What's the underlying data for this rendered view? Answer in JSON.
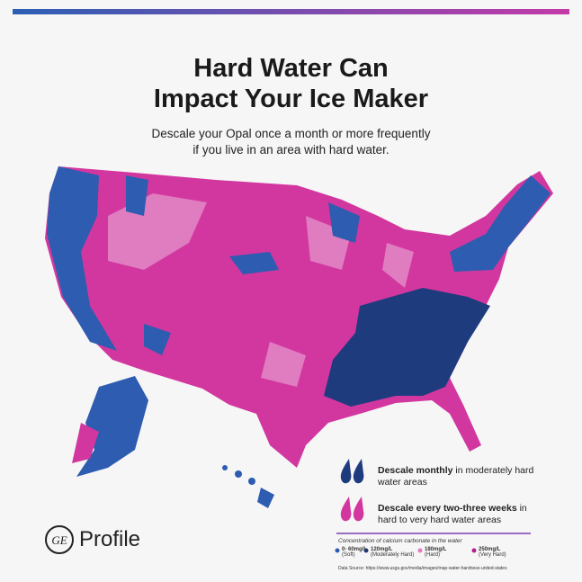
{
  "header": {
    "title_lines": [
      "Hard Water Can",
      "Impact Your Ice Maker"
    ],
    "subtitle_lines": [
      "Descale your Opal once a month or more frequently",
      "if you live in an area with hard water."
    ]
  },
  "legend": {
    "items": [
      {
        "bold": "Descale monthly",
        "text": "in moderately hard water areas"
      },
      {
        "bold": "Descale every two-three weeks",
        "text": "in hard to very hard water areas"
      }
    ]
  },
  "scale": {
    "title": "Concentration of calcium carbonate in the water",
    "items": [
      {
        "label": "0- 60mg/L",
        "note": "(Soft)"
      },
      {
        "label": "120mg/L",
        "note": "(Moderately Hard)"
      },
      {
        "label": "180mg/L",
        "note": "(Hard)"
      },
      {
        "label": "250mg/L",
        "note": "(Very Hard)"
      }
    ]
  },
  "source": "Data Source: https://www.usgs.gov/media/images/map-water-hardness-united-states",
  "brand": "Profile"
}
